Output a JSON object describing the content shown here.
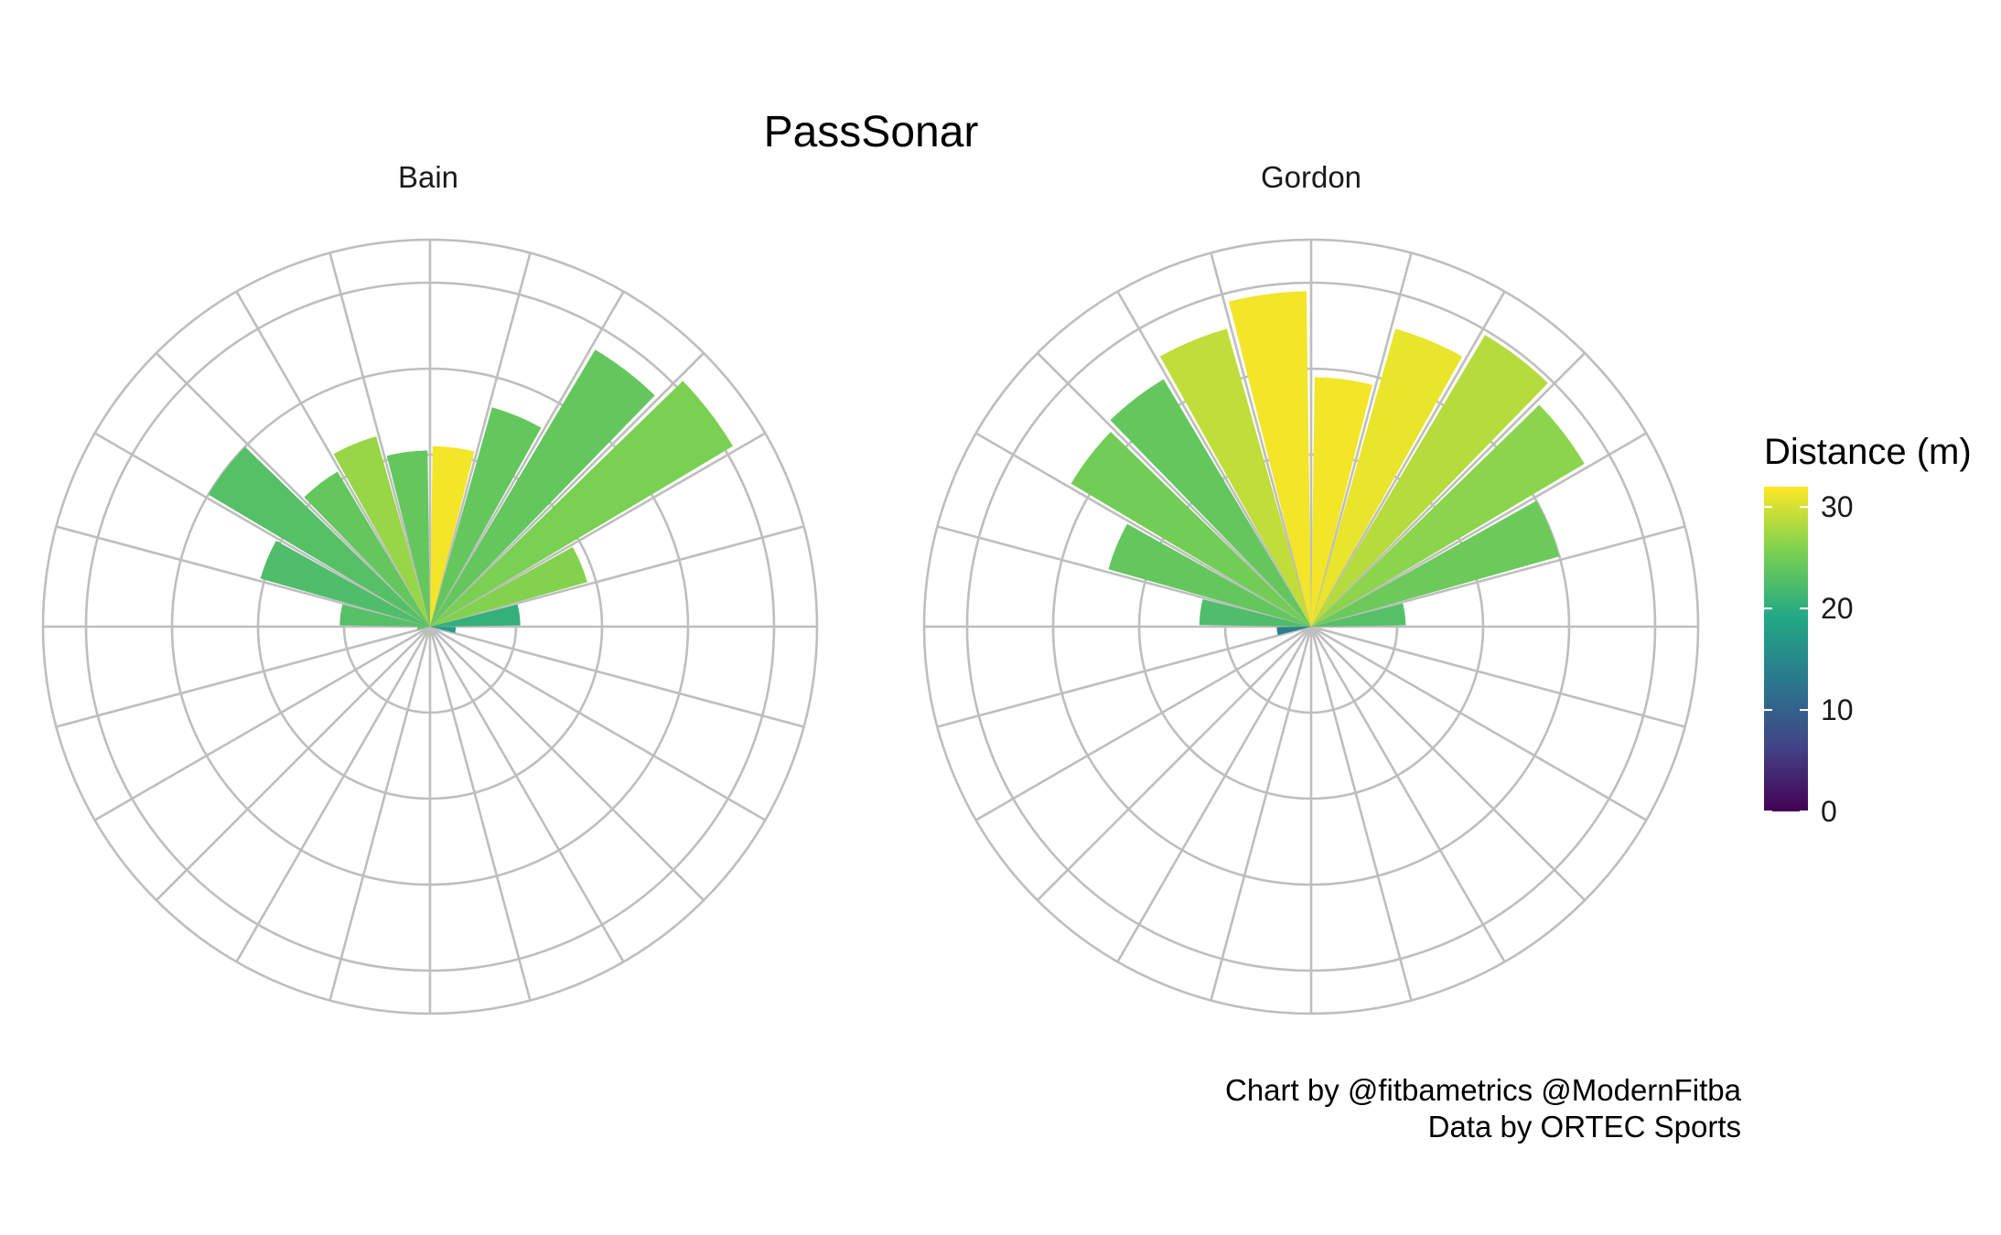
{
  "chart_data": {
    "type": "polar-bar",
    "title": "PassSonar",
    "caption": [
      "Chart by @fitbametrics @ModernFitba",
      "Data by ORTEC Sports"
    ],
    "legend": {
      "title": "Distance (m)",
      "range": [
        0,
        32
      ],
      "ticks": [
        0,
        10,
        20,
        30
      ],
      "placement": "right",
      "colors": [
        "#440154",
        "#414487",
        "#2a788e",
        "#22a884",
        "#7ad151",
        "#fde725"
      ]
    },
    "grid": true,
    "sectors": 24,
    "panels": [
      {
        "name": "Bain",
        "bars": [
          {
            "sector": 0,
            "length": 4.2,
            "distance": 31.5
          },
          {
            "sector": 1,
            "length": 5.3,
            "distance": 24
          },
          {
            "sector": 2,
            "length": 7.5,
            "distance": 24
          },
          {
            "sector": 3,
            "length": 8.2,
            "distance": 25.5
          },
          {
            "sector": 4,
            "length": 3.8,
            "distance": 26
          },
          {
            "sector": 5,
            "length": 2.1,
            "distance": 20.5
          },
          {
            "sector": 6,
            "length": 0.6,
            "distance": 17.5
          },
          {
            "sector": 17,
            "length": 0.3,
            "distance": 24
          },
          {
            "sector": 18,
            "length": 2.1,
            "distance": 23
          },
          {
            "sector": 19,
            "length": 4.1,
            "distance": 22.5
          },
          {
            "sector": 20,
            "length": 6.0,
            "distance": 23
          },
          {
            "sector": 21,
            "length": 4.2,
            "distance": 24
          },
          {
            "sector": 22,
            "length": 4.6,
            "distance": 27
          },
          {
            "sector": 23,
            "length": 4.1,
            "distance": 24
          }
        ]
      },
      {
        "name": "Gordon",
        "bars": [
          {
            "sector": 0,
            "length": 5.8,
            "distance": 31.5
          },
          {
            "sector": 1,
            "length": 7.2,
            "distance": 31
          },
          {
            "sector": 2,
            "length": 7.9,
            "distance": 28.5
          },
          {
            "sector": 3,
            "length": 7.4,
            "distance": 26.5
          },
          {
            "sector": 4,
            "length": 6.0,
            "distance": 24.5
          },
          {
            "sector": 5,
            "length": 2.2,
            "distance": 23
          },
          {
            "sector": 17,
            "length": 0.8,
            "distance": 14
          },
          {
            "sector": 18,
            "length": 2.6,
            "distance": 22.5
          },
          {
            "sector": 19,
            "length": 4.9,
            "distance": 24
          },
          {
            "sector": 20,
            "length": 6.5,
            "distance": 25
          },
          {
            "sector": 21,
            "length": 6.7,
            "distance": 24
          },
          {
            "sector": 22,
            "length": 7.2,
            "distance": 29
          },
          {
            "sector": 23,
            "length": 7.8,
            "distance": 31.5
          }
        ]
      }
    ]
  }
}
